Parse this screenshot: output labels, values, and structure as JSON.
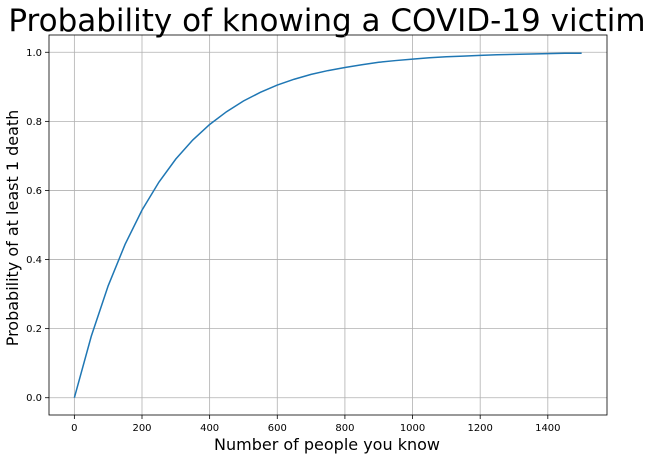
{
  "chart_data": {
    "type": "line",
    "title": "Probability of knowing a COVID-19 victim",
    "xlabel": "Number of people you know",
    "ylabel": "Probability of at least 1 death",
    "xlim": [
      -75,
      1575
    ],
    "ylim": [
      -0.05,
      1.05
    ],
    "xticks": [
      0,
      200,
      400,
      600,
      800,
      1000,
      1200,
      1400
    ],
    "yticks": [
      0.0,
      0.2,
      0.4,
      0.6,
      0.8,
      1.0
    ],
    "xtick_labels": [
      "0",
      "200",
      "400",
      "600",
      "800",
      "1000",
      "1200",
      "1400"
    ],
    "ytick_labels": [
      "0.0",
      "0.2",
      "0.4",
      "0.6",
      "0.8",
      "1.0"
    ],
    "grid": true,
    "line_color": "#1f77b4",
    "series": [
      {
        "x": [
          0,
          50,
          100,
          150,
          200,
          250,
          300,
          350,
          400,
          450,
          500,
          550,
          600,
          650,
          700,
          750,
          800,
          850,
          900,
          950,
          1000,
          1050,
          1100,
          1150,
          1200,
          1250,
          1300,
          1350,
          1400,
          1450,
          1500
        ],
        "values": [
          0.0,
          0.178,
          0.324,
          0.444,
          0.543,
          0.624,
          0.691,
          0.746,
          0.791,
          0.828,
          0.859,
          0.884,
          0.905,
          0.922,
          0.936,
          0.947,
          0.956,
          0.964,
          0.971,
          0.976,
          0.98,
          0.984,
          0.987,
          0.989,
          0.991,
          0.993,
          0.994,
          0.995,
          0.996,
          0.997,
          0.997
        ]
      }
    ]
  }
}
